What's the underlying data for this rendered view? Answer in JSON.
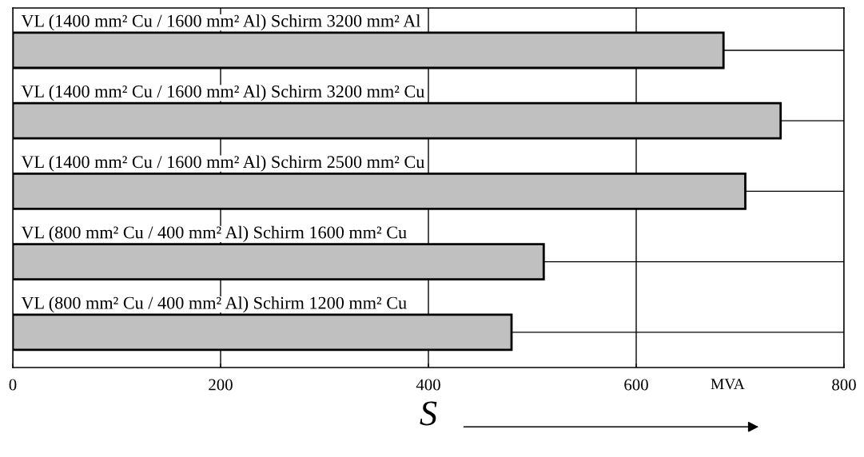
{
  "chart_data": {
    "type": "bar",
    "orientation": "horizontal",
    "xlabel": "S",
    "categories": [
      "VL (1400 mm² Cu / 1600 mm² Al) Schirm 3200 mm² Al",
      "VL (1400 mm² Cu / 1600 mm² Al) Schirm 3200 mm² Cu",
      "VL (1400 mm² Cu / 1600 mm² Al) Schirm 2500 mm² Cu",
      "VL (800 mm² Cu / 400 mm² Al) Schirm 1600 mm² Cu",
      "VL (800 mm² Cu / 400 mm² Al) Schirm 1200 mm² Cu"
    ],
    "values": [
      684,
      739,
      705,
      511,
      480
    ],
    "color": "#c0c0c0",
    "xlim": [
      0,
      800
    ],
    "xticks": [
      0,
      200,
      400,
      600,
      800
    ],
    "annotations": [
      "MVA"
    ],
    "grid": true,
    "tick_labels": "x"
  }
}
